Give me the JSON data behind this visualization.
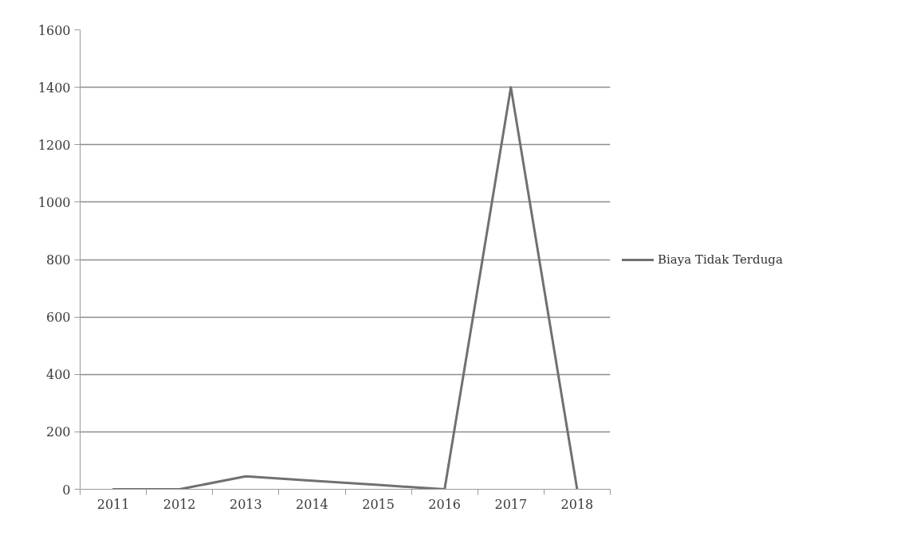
{
  "chart_data": {
    "type": "line",
    "categories": [
      "2011",
      "2012",
      "2013",
      "2014",
      "2015",
      "2016",
      "2017",
      "2018"
    ],
    "series": [
      {
        "name": "Biaya Tidak Terduga",
        "color": "#707070",
        "values": [
          0,
          0,
          45,
          30,
          15,
          0,
          1400,
          0
        ]
      }
    ],
    "ylim": [
      0,
      1600
    ],
    "yticks": [
      0,
      200,
      400,
      600,
      800,
      1000,
      1200,
      1400,
      1600
    ],
    "grid": "y",
    "legend": "right",
    "marker": "none",
    "line_style": "solid"
  }
}
